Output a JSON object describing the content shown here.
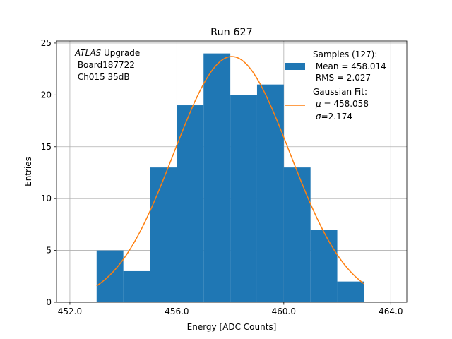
{
  "chart_data": {
    "type": "bar",
    "title": "Run 627",
    "xlabel": "Energy [ADC Counts]",
    "ylabel": "Entries",
    "xlim": [
      451.5,
      464.6
    ],
    "ylim": [
      0,
      25.2
    ],
    "grid": true,
    "x_ticks": [
      452,
      456,
      460,
      464
    ],
    "x_tick_labels": [
      "452.0",
      "456.0",
      "460.0",
      "464.0"
    ],
    "y_ticks": [
      0,
      5,
      10,
      15,
      20,
      25
    ],
    "y_tick_labels": [
      "0",
      "5",
      "10",
      "15",
      "20",
      "25"
    ],
    "histogram": {
      "bin_edges": [
        453,
        454,
        455,
        456,
        457,
        458,
        459,
        460,
        461,
        462,
        463
      ],
      "counts": [
        5,
        3,
        13,
        19,
        24,
        20,
        21,
        13,
        7,
        2
      ],
      "color": "#1f77b4"
    },
    "fit": {
      "mu": 458.058,
      "sigma": 2.174,
      "amplitude": 23.7,
      "x_range": [
        453,
        463
      ],
      "color": "#ff7f0e"
    },
    "annotation": {
      "italic": "ATLAS",
      "suffix": " Upgrade",
      "line2": " Board187722",
      "line3": " Ch015 35dB"
    },
    "legend": {
      "placement": "top-right",
      "samples_lines": [
        "Samples (127):",
        " Mean = 458.014",
        " RMS = 2.027"
      ],
      "fit_lines": [
        "Gaussian Fit:"
      ],
      "fit_mu_symbol": "μ",
      "fit_mu_text": " = 458.058",
      "fit_sigma_symbol": "σ",
      "fit_sigma_text": "=2.174"
    }
  }
}
